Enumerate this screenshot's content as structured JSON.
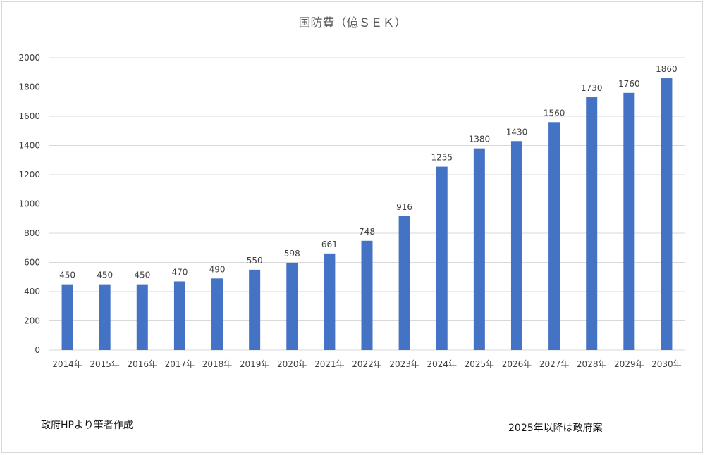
{
  "chart_data": {
    "type": "bar",
    "title": "国防費（億ＳＥＫ）",
    "xlabel": "",
    "ylabel": "",
    "categories": [
      "2014年",
      "2015年",
      "2016年",
      "2017年",
      "2018年",
      "2019年",
      "2020年",
      "2021年",
      "2022年",
      "2023年",
      "2024年",
      "2025年",
      "2026年",
      "2027年",
      "2028年",
      "2029年",
      "2030年"
    ],
    "values": [
      450,
      450,
      450,
      470,
      490,
      550,
      598,
      661,
      748,
      916,
      1255,
      1380,
      1430,
      1560,
      1730,
      1760,
      1860
    ],
    "ylim": [
      0,
      2000
    ],
    "yticks": [
      0,
      200,
      400,
      600,
      800,
      1000,
      1200,
      1400,
      1600,
      1800,
      2000
    ],
    "grid": true,
    "legend": "none",
    "data_labels": true,
    "bar_color": "#4472c4",
    "annotations": [
      "政府HPより筆者作成",
      "2025年以降は政府案"
    ]
  },
  "colors": {
    "bar": "#4472c4",
    "grid": "#d9d9d9",
    "text": "#404040"
  }
}
